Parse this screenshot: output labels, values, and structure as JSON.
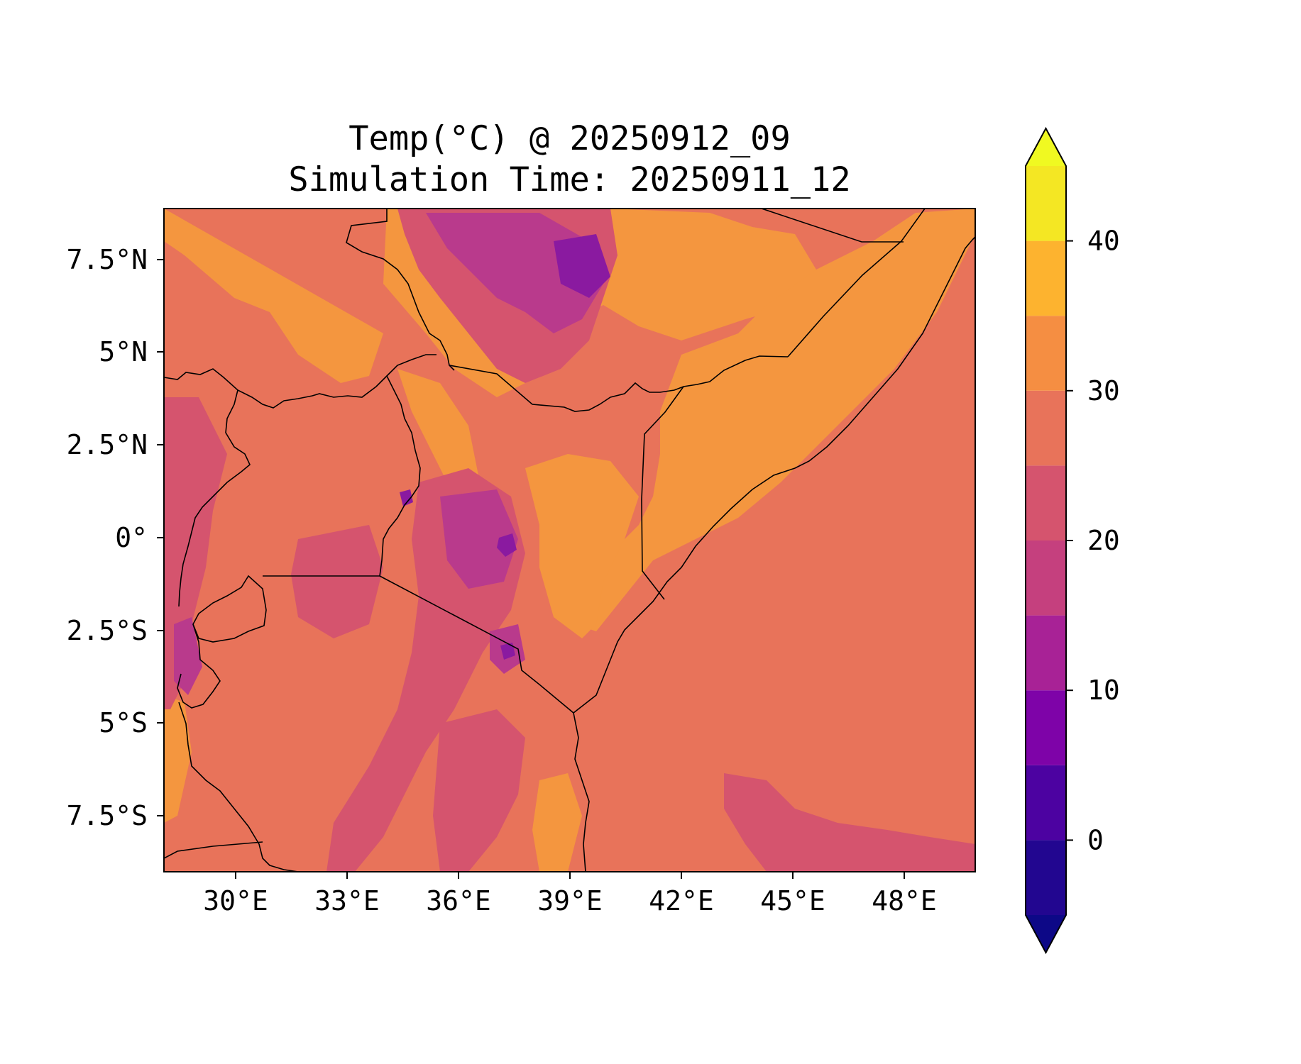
{
  "title_line1": "Temp(°C) @ 20250912_09",
  "title_line2": "Simulation Time: 20250911_12",
  "x_ticks": [
    "30°E",
    "33°E",
    "36°E",
    "39°E",
    "42°E",
    "45°E",
    "48°E"
  ],
  "y_ticks": [
    "7.5°N",
    "5°N",
    "2.5°N",
    "0°",
    "2.5°S",
    "5°S",
    "7.5°S"
  ],
  "colorbar": {
    "tick_labels": [
      "0",
      "10",
      "20",
      "30",
      "40"
    ],
    "levels": [
      -5,
      0,
      5,
      10,
      15,
      20,
      25,
      30,
      35,
      40,
      45
    ],
    "colors": [
      "#220690",
      "#4c02a1",
      "#7e03a8",
      "#a82296",
      "#c5407e",
      "#d5546e",
      "#e8735a",
      "#f58e42",
      "#fdb32f",
      "#f4e723"
    ],
    "under_color": "#0d0887",
    "over_color": "#f0f921"
  },
  "field_colors": {
    "dominant": "#e8735a",
    "warm": "#f4963f",
    "cool": "#d5546e",
    "cold": "#b93a8c",
    "coldest": "#8a1aa0"
  },
  "border_color": "#000000"
}
